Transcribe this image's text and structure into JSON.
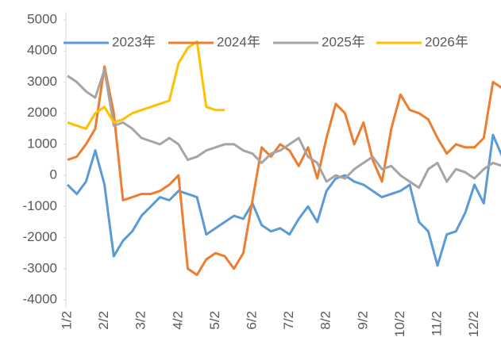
{
  "chart_data": {
    "type": "line",
    "categories": [
      "1/2",
      null,
      null,
      null,
      "2/2",
      null,
      null,
      null,
      "3/2",
      null,
      null,
      null,
      "4/2",
      null,
      null,
      null,
      "5/2",
      null,
      null,
      null,
      "6/2",
      null,
      null,
      null,
      "7/2",
      null,
      null,
      null,
      "8/2",
      null,
      null,
      null,
      "9/2",
      null,
      null,
      null,
      "10/2",
      null,
      null,
      null,
      "11/2",
      null,
      null,
      null,
      "12/2",
      null,
      null,
      null
    ],
    "series": [
      {
        "name": "2023年",
        "color": "#5b9bd5",
        "values": [
          -300,
          -600,
          -200,
          800,
          -300,
          -2600,
          -2100,
          -1800,
          -1300,
          -1000,
          -700,
          -800,
          -500,
          -600,
          -700,
          -1900,
          -1700,
          -1500,
          -1300,
          -1400,
          -900,
          -1600,
          -1800,
          -1700,
          -1900,
          -1400,
          -1000,
          -1500,
          -500,
          -100,
          0,
          -200,
          -300,
          -500,
          -700,
          -600,
          -500,
          -300,
          -1500,
          -1800,
          -2900,
          -1900,
          -1800,
          -1200,
          -300,
          -900,
          1300,
          600
        ]
      },
      {
        "name": "2024年",
        "color": "#ed7d31",
        "values": [
          500,
          600,
          1000,
          1500,
          3500,
          2000,
          -800,
          -700,
          -600,
          -600,
          -500,
          -300,
          0,
          -3000,
          -3200,
          -2700,
          -2500,
          -2600,
          -3000,
          -2500,
          -800,
          900,
          600,
          1000,
          800,
          300,
          900,
          -100,
          1200,
          2300,
          2000,
          1000,
          1700,
          500,
          -200,
          1500,
          2600,
          2100,
          2000,
          1800,
          1200,
          700,
          1000,
          900,
          900,
          1200,
          3000,
          2800
        ]
      },
      {
        "name": "2025年",
        "color": "#a5a5a5",
        "values": [
          3200,
          3000,
          2700,
          2500,
          3400,
          1600,
          1700,
          1500,
          1200,
          1100,
          1000,
          1200,
          1000,
          500,
          600,
          800,
          900,
          1000,
          1000,
          800,
          700,
          400,
          700,
          800,
          1000,
          1200,
          600,
          400,
          -200,
          0,
          -100,
          200,
          400,
          600,
          200,
          300,
          0,
          -200,
          -400,
          200,
          400,
          -200,
          200,
          100,
          -100,
          200,
          400,
          300
        ]
      },
      {
        "name": "2026年",
        "color": "#ffc000",
        "values": [
          1700,
          1600,
          1500,
          2000,
          2200,
          1700,
          1800,
          2000,
          2100,
          2200,
          2300,
          2400,
          3600,
          4100,
          4300,
          2200,
          2100,
          2100,
          null,
          null,
          null,
          null,
          null,
          null,
          null,
          null,
          null,
          null,
          null,
          null,
          null,
          null,
          null,
          null,
          null,
          null,
          null,
          null,
          null,
          null,
          null,
          null,
          null,
          null,
          null,
          null,
          null,
          null
        ]
      }
    ],
    "ylim": [
      -4000,
      5000
    ],
    "yticks": [
      -4000,
      -3000,
      -2000,
      -1000,
      0,
      1000,
      2000,
      3000,
      4000,
      5000
    ],
    "grid": false,
    "legend": "top"
  }
}
